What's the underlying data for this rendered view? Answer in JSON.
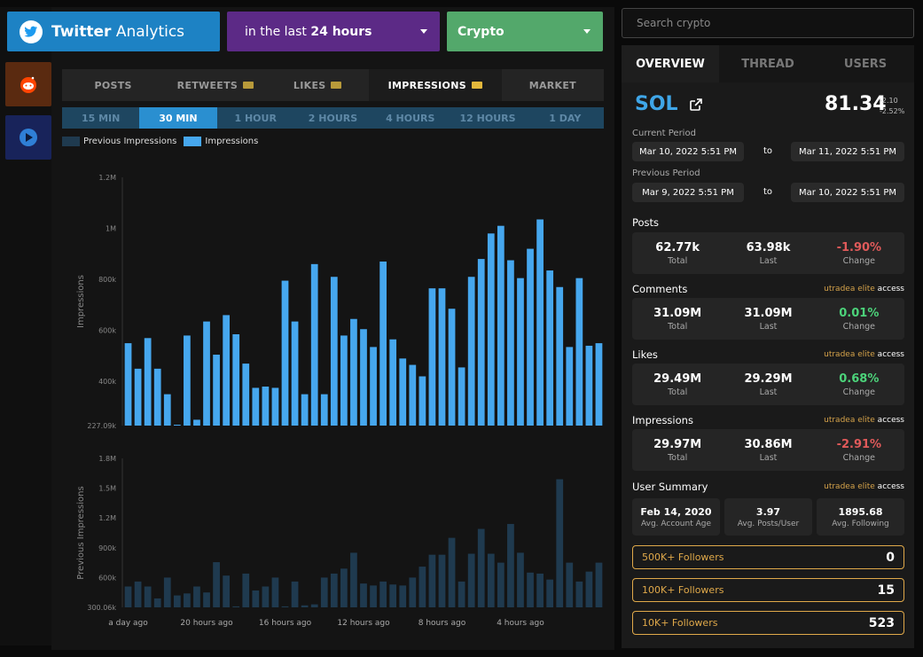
{
  "header": {
    "brand_bold": "Twitter",
    "brand_rest": " Analytics",
    "period_prefix": "in the last ",
    "period_bold": "24 hours",
    "market": "Crypto"
  },
  "tabs": [
    "POSTS",
    "RETWEETS",
    "LIKES",
    "IMPRESSIONS",
    "MARKET"
  ],
  "intervals": [
    "15 MIN",
    "30 MIN",
    "1 HOUR",
    "2 HOURS",
    "4 HOURS",
    "12 HOURS",
    "1 DAY"
  ],
  "legend": {
    "previous": "Previous Impressions",
    "current": "Impressions"
  },
  "colors": {
    "current_bar": "#46a7ee",
    "previous_bar": "#1f3a4f",
    "accent": "#3fa6e8",
    "negative": "#e05a5a",
    "positive": "#4cd37a",
    "elite": "#d4a24a"
  },
  "chart_data": [
    {
      "type": "bar",
      "ylabel": "Impressions",
      "ylim": [
        227090,
        1200000
      ],
      "yticks": [
        {
          "v": 1200000,
          "t": "1.2M"
        },
        {
          "v": 1000000,
          "t": "1M"
        },
        {
          "v": 800000,
          "t": "800k"
        },
        {
          "v": 600000,
          "t": "600k"
        },
        {
          "v": 400000,
          "t": "400k"
        },
        {
          "v": 227090,
          "t": "227.09k"
        }
      ],
      "values": [
        550000,
        450000,
        570000,
        450000,
        350000,
        227090,
        580000,
        250000,
        635000,
        505000,
        660000,
        585000,
        470000,
        375000,
        380000,
        375000,
        795000,
        635000,
        350000,
        860000,
        350000,
        810000,
        580000,
        645000,
        605000,
        535000,
        870000,
        565000,
        490000,
        465000,
        420000,
        765000,
        765000,
        685000,
        455000,
        810000,
        880000,
        980000,
        1010000,
        875000,
        805000,
        920000,
        1035000,
        835000,
        770000,
        535000,
        805000,
        540000,
        550000
      ]
    },
    {
      "type": "bar",
      "ylabel": "Previous Impressions",
      "ylim": [
        300060,
        1800000
      ],
      "yticks": [
        {
          "v": 1800000,
          "t": "1.8M"
        },
        {
          "v": 1500000,
          "t": "1.5M"
        },
        {
          "v": 1200000,
          "t": "1.2M"
        },
        {
          "v": 900000,
          "t": "900k"
        },
        {
          "v": 600000,
          "t": "600k"
        },
        {
          "v": 300060,
          "t": "300.06k"
        }
      ],
      "xticks": [
        {
          "i": 0,
          "t": "a day ago"
        },
        {
          "i": 8,
          "t": "20 hours ago"
        },
        {
          "i": 16,
          "t": "16 hours ago"
        },
        {
          "i": 24,
          "t": "12 hours ago"
        },
        {
          "i": 32,
          "t": "8 hours ago"
        },
        {
          "i": 40,
          "t": "4 hours ago"
        }
      ],
      "values": [
        510000,
        560000,
        510000,
        390000,
        600000,
        420000,
        440000,
        510000,
        450000,
        755000,
        620000,
        310000,
        640000,
        470000,
        510000,
        600000,
        310000,
        560000,
        320000,
        330000,
        600000,
        640000,
        690000,
        850000,
        540000,
        520000,
        560000,
        530000,
        520000,
        600000,
        710000,
        830000,
        830000,
        1000000,
        560000,
        840000,
        1090000,
        840000,
        750000,
        1140000,
        850000,
        650000,
        640000,
        580000,
        1590000,
        750000,
        560000,
        660000,
        750000
      ]
    }
  ],
  "search": {
    "placeholder": "Search crypto"
  },
  "right_tabs": [
    "OVERVIEW",
    "THREAD",
    "USERS"
  ],
  "asset": {
    "ticker": "SOL",
    "price": "81.34",
    "change_abs": "-2.10",
    "change_pct": "-2.52%"
  },
  "periods": {
    "current_label": "Current Period",
    "current_from": "Mar 10, 2022 5:51 PM",
    "current_to": "Mar 11, 2022 5:51 PM",
    "previous_label": "Previous Period",
    "previous_from": "Mar 9, 2022 5:51 PM",
    "previous_to": "Mar 10, 2022 5:51 PM",
    "to": "to"
  },
  "elite": {
    "brand": "utradea elite",
    "suffix": " access"
  },
  "stat_labels": {
    "total": "Total",
    "last": "Last",
    "change": "Change"
  },
  "stats": {
    "posts": {
      "title": "Posts",
      "total": "62.77k",
      "last": "63.98k",
      "change": "-1.90%"
    },
    "comments": {
      "title": "Comments",
      "total": "31.09M",
      "last": "31.09M",
      "change": "0.01%"
    },
    "likes": {
      "title": "Likes",
      "total": "29.49M",
      "last": "29.29M",
      "change": "0.68%"
    },
    "impressions": {
      "title": "Impressions",
      "total": "29.97M",
      "last": "30.86M",
      "change": "-2.91%"
    }
  },
  "user_summary": {
    "title": "User Summary",
    "account_age": "Feb 14, 2020",
    "account_age_label": "Avg. Account Age",
    "posts_per_user": "3.97",
    "posts_per_user_label": "Avg. Posts/User",
    "following": "1895.68",
    "following_label": "Avg. Following"
  },
  "followers": [
    {
      "label": "500K+ Followers",
      "count": "0"
    },
    {
      "label": "100K+ Followers",
      "count": "15"
    },
    {
      "label": "10K+ Followers",
      "count": "523"
    }
  ]
}
